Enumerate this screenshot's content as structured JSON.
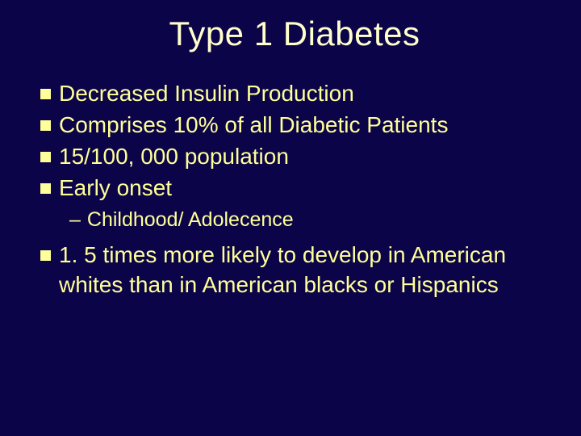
{
  "colors": {
    "background": "#0c0448",
    "text": "#ffff99",
    "bullet": "#ffff99",
    "title": "#ffffcc"
  },
  "typography": {
    "title_fontsize": 42,
    "body_fontsize": 28,
    "sub_fontsize": 25,
    "font_family": "Tahoma, Verdana, Arial, sans-serif"
  },
  "title": "Type 1 Diabetes",
  "bullets": {
    "b1": "Decreased Insulin Production",
    "b2": "Comprises 10% of all Diabetic Patients",
    "b3": "15/100, 000 population",
    "b4": "Early onset",
    "b4_sub1": "Childhood/ Adolecence",
    "b5": "1. 5 times more likely to develop in American whites than in American blacks or Hispanics"
  }
}
